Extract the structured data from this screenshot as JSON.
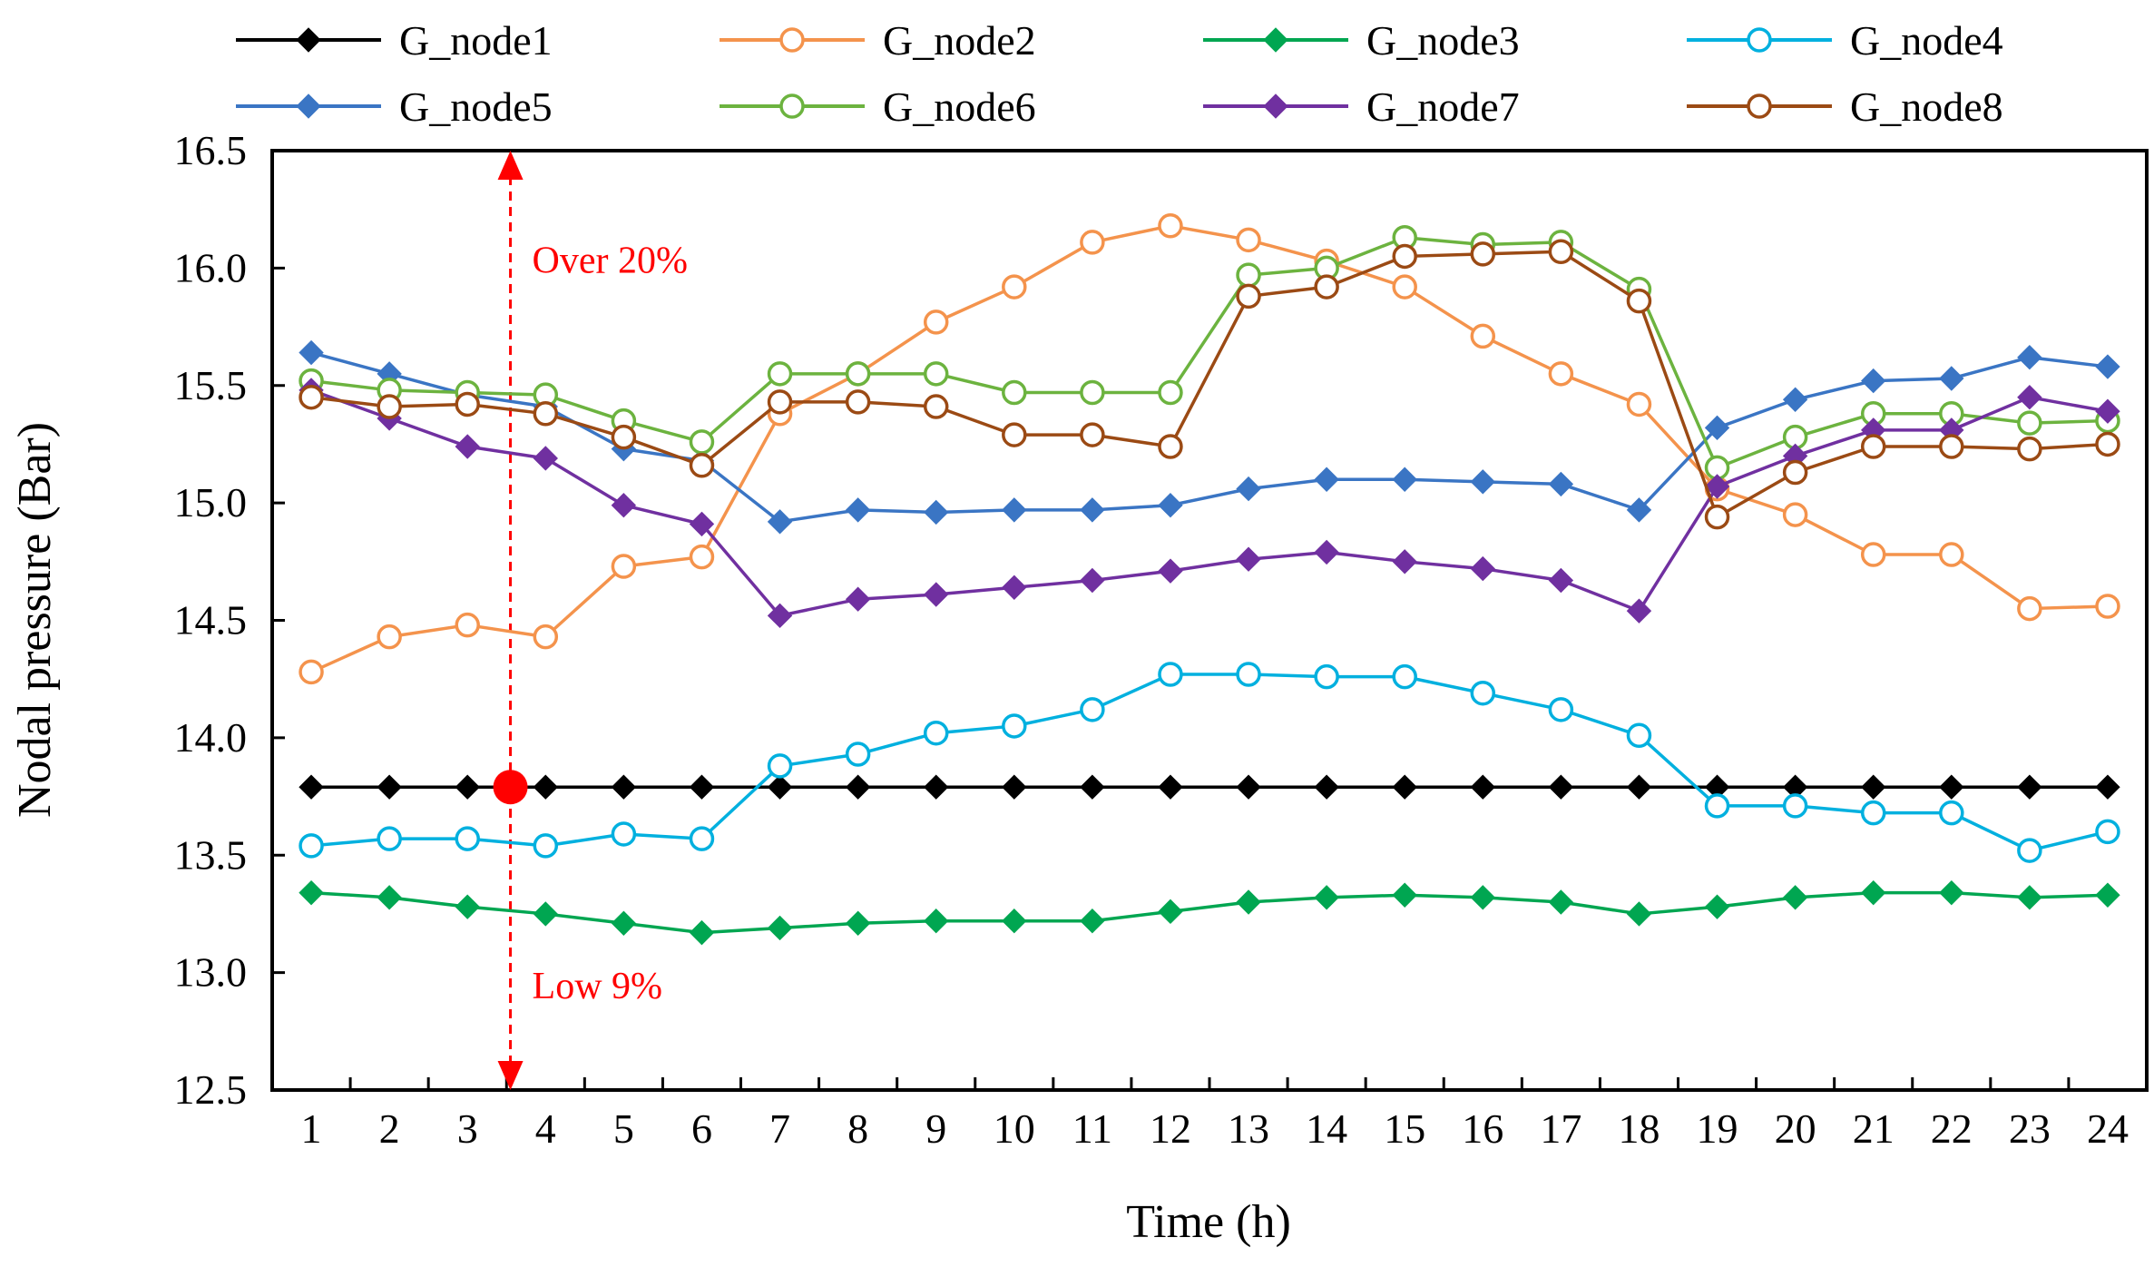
{
  "chart_data": {
    "type": "line",
    "title": "",
    "xlabel": "Time (h)",
    "ylabel": "Nodal pressure (Bar)",
    "ylim": [
      12.5,
      16.5
    ],
    "yticks": [
      "12.5",
      "13.0",
      "13.5",
      "14.0",
      "14.5",
      "15.0",
      "15.5",
      "16.0",
      "16.5"
    ],
    "x": [
      1,
      2,
      3,
      4,
      5,
      6,
      7,
      8,
      9,
      10,
      11,
      12,
      13,
      14,
      15,
      16,
      17,
      18,
      19,
      20,
      21,
      22,
      23,
      24
    ],
    "xticks": [
      "1",
      "2",
      "3",
      "4",
      "5",
      "6",
      "7",
      "8",
      "9",
      "10",
      "11",
      "12",
      "13",
      "14",
      "15",
      "16",
      "17",
      "18",
      "19",
      "20",
      "21",
      "22",
      "23",
      "24"
    ],
    "grid": false,
    "legend_position": "top",
    "series": [
      {
        "name": "G_node1",
        "color": "#000000",
        "marker": "diamond-filled",
        "values": [
          13.79,
          13.79,
          13.79,
          13.79,
          13.79,
          13.79,
          13.79,
          13.79,
          13.79,
          13.79,
          13.79,
          13.79,
          13.79,
          13.79,
          13.79,
          13.79,
          13.79,
          13.79,
          13.79,
          13.79,
          13.79,
          13.79,
          13.79,
          13.79
        ]
      },
      {
        "name": "G_node2",
        "color": "#f4934c",
        "marker": "circle-open",
        "values": [
          14.28,
          14.43,
          14.48,
          14.43,
          14.73,
          14.77,
          15.38,
          15.55,
          15.77,
          15.92,
          16.11,
          16.18,
          16.12,
          16.03,
          15.92,
          15.71,
          15.55,
          15.42,
          15.06,
          14.95,
          14.78,
          14.78,
          14.55,
          14.56
        ]
      },
      {
        "name": "G_node3",
        "color": "#00a651",
        "marker": "diamond-filled",
        "values": [
          13.34,
          13.32,
          13.28,
          13.25,
          13.21,
          13.17,
          13.19,
          13.21,
          13.22,
          13.22,
          13.22,
          13.26,
          13.3,
          13.32,
          13.33,
          13.32,
          13.3,
          13.25,
          13.28,
          13.32,
          13.34,
          13.34,
          13.32,
          13.33
        ]
      },
      {
        "name": "G_node4",
        "color": "#00b0df",
        "marker": "circle-open",
        "values": [
          13.54,
          13.57,
          13.57,
          13.54,
          13.59,
          13.57,
          13.88,
          13.93,
          14.02,
          14.05,
          14.12,
          14.27,
          14.27,
          14.26,
          14.26,
          14.19,
          14.12,
          14.01,
          13.71,
          13.71,
          13.68,
          13.68,
          13.52,
          13.6
        ]
      },
      {
        "name": "G_node5",
        "color": "#3a75c4",
        "marker": "diamond-filled",
        "values": [
          15.64,
          15.55,
          15.46,
          15.41,
          15.23,
          15.18,
          14.92,
          14.97,
          14.96,
          14.97,
          14.97,
          14.99,
          15.06,
          15.1,
          15.1,
          15.09,
          15.08,
          14.97,
          15.32,
          15.44,
          15.52,
          15.53,
          15.62,
          15.58
        ]
      },
      {
        "name": "G_node6",
        "color": "#6cb33f",
        "marker": "circle-open",
        "values": [
          15.52,
          15.48,
          15.47,
          15.46,
          15.35,
          15.26,
          15.55,
          15.55,
          15.55,
          15.47,
          15.47,
          15.47,
          15.97,
          16.0,
          16.13,
          16.1,
          16.11,
          15.91,
          15.15,
          15.28,
          15.38,
          15.38,
          15.34,
          15.35
        ]
      },
      {
        "name": "G_node7",
        "color": "#7030a0",
        "marker": "diamond-filled",
        "values": [
          15.48,
          15.36,
          15.24,
          15.19,
          14.99,
          14.91,
          14.52,
          14.59,
          14.61,
          14.64,
          14.67,
          14.71,
          14.76,
          14.79,
          14.75,
          14.72,
          14.67,
          14.54,
          15.07,
          15.2,
          15.31,
          15.31,
          15.45,
          15.39
        ]
      },
      {
        "name": "G_node8",
        "color": "#9b4a14",
        "marker": "circle-open",
        "values": [
          15.45,
          15.41,
          15.42,
          15.38,
          15.28,
          15.16,
          15.43,
          15.43,
          15.41,
          15.29,
          15.29,
          15.24,
          15.88,
          15.92,
          16.05,
          16.06,
          16.07,
          15.86,
          14.94,
          15.13,
          15.24,
          15.24,
          15.23,
          15.25
        ]
      }
    ],
    "annotations": {
      "upper_text": "Over 20%",
      "lower_text": "Low 9%",
      "marker_x": 3.55,
      "marker_y": 13.79,
      "arrow_top": 16.5,
      "arrow_bottom": 12.5,
      "color": "#ff0000"
    }
  }
}
